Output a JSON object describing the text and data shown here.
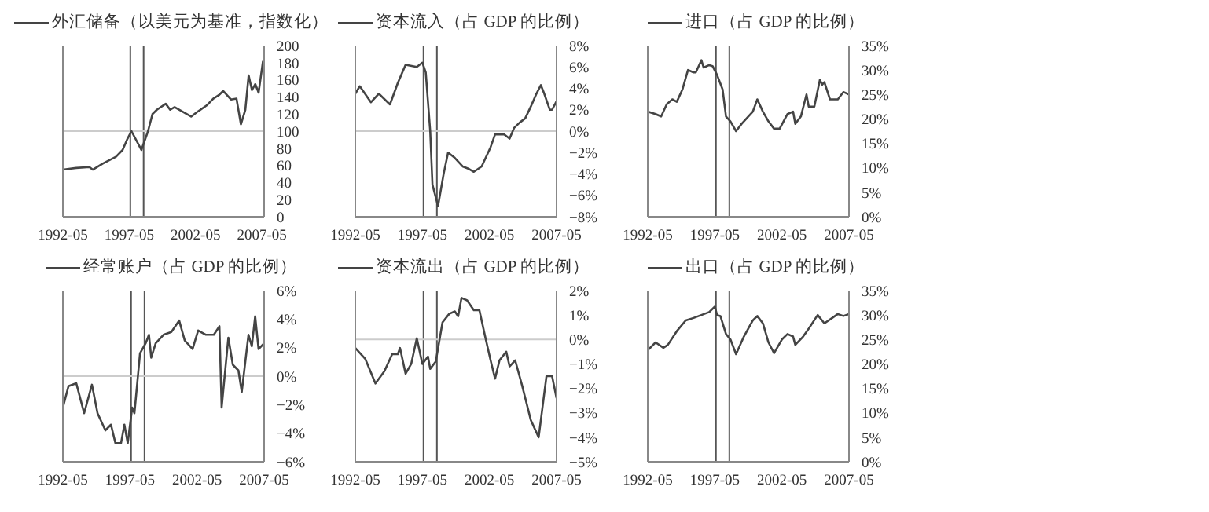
{
  "chart_data": [
    {
      "type": "line",
      "legend": "top",
      "marker": "none",
      "xlim": [
        "1992-05",
        "2007-07"
      ],
      "xticks": [
        "1992-05",
        "1997-05",
        "2002-05",
        "2007-05"
      ],
      "ylim": [
        0,
        200
      ],
      "yticks": [
        0,
        20,
        40,
        60,
        80,
        100,
        120,
        140,
        160,
        180,
        200
      ],
      "ref_lines": [
        {
          "axis": "x",
          "value": "1997-06",
          "color": "#555555"
        },
        {
          "axis": "x",
          "value": "1998-06",
          "color": "#555555"
        },
        {
          "axis": "y",
          "value": 100,
          "color": "#cccccc"
        }
      ],
      "x": [
        "1992-05",
        "1993-05",
        "1994-05",
        "1994-08",
        "1995-05",
        "1996-05",
        "1996-11",
        "1997-03",
        "1997-07",
        "1998-04",
        "1998-10",
        "1999-02",
        "1999-06",
        "2000-02",
        "2000-06",
        "2000-10",
        "2002-01",
        "2002-06",
        "2003-03",
        "2003-09",
        "2004-02",
        "2004-06",
        "2005-01",
        "2005-06",
        "2005-10",
        "2006-02",
        "2006-05",
        "2006-08",
        "2006-11",
        "2007-02",
        "2007-06"
      ],
      "series": [
        {
          "name": "外汇储备（以美元为基准，指数化）",
          "color": "#444444",
          "values": [
            55,
            57,
            58,
            55,
            62,
            70,
            78,
            90,
            100,
            78,
            100,
            120,
            125,
            132,
            125,
            128,
            117,
            122,
            130,
            138,
            142,
            147,
            137,
            138,
            108,
            125,
            165,
            148,
            155,
            145,
            182
          ]
        }
      ]
    },
    {
      "type": "line",
      "legend": "top",
      "marker": "none",
      "xlim": [
        "1992-05",
        "2007-05"
      ],
      "xticks": [
        "1992-05",
        "1997-05",
        "2002-05",
        "2007-05"
      ],
      "ylim": [
        -8,
        8
      ],
      "yticks": [
        {
          "value": -8,
          "label": "−8%"
        },
        {
          "value": -6,
          "label": "−6%"
        },
        {
          "value": -4,
          "label": "−4%"
        },
        {
          "value": -2,
          "label": "−2%"
        },
        {
          "value": 0,
          "label": "0%"
        },
        {
          "value": 2,
          "label": "2%"
        },
        {
          "value": 4,
          "label": "4%"
        },
        {
          "value": 6,
          "label": "6%"
        },
        {
          "value": 8,
          "label": "8%"
        }
      ],
      "ref_lines": [
        {
          "axis": "x",
          "value": "1997-06",
          "color": "#555555"
        },
        {
          "axis": "x",
          "value": "1998-06",
          "color": "#555555"
        },
        {
          "axis": "y",
          "value": 0,
          "color": "#cccccc"
        }
      ],
      "x": [
        "1992-05",
        "1992-09",
        "1993-07",
        "1994-02",
        "1994-12",
        "1995-07",
        "1996-02",
        "1996-12",
        "1997-05",
        "1997-08",
        "1997-12",
        "1998-02",
        "1998-07",
        "1998-12",
        "1999-04",
        "1999-10",
        "2000-05",
        "2000-10",
        "2001-03",
        "2001-10",
        "2002-06",
        "2002-10",
        "2003-06",
        "2003-11",
        "2004-03",
        "2004-08",
        "2005-01",
        "2005-06",
        "2005-11",
        "2006-03",
        "2006-06",
        "2006-11",
        "2007-01",
        "2007-05"
      ],
      "series": [
        {
          "name": "资本流入（占 GDP 的比例）",
          "color": "#444444",
          "values": [
            3.5,
            4.2,
            2.7,
            3.5,
            2.5,
            4.5,
            6.2,
            6.0,
            6.4,
            5.5,
            0,
            -5,
            -7,
            -4,
            -2,
            -2.5,
            -3.3,
            -3.5,
            -3.8,
            -3.3,
            -1.5,
            -0.3,
            -0.3,
            -0.7,
            0.3,
            0.8,
            1.2,
            2.3,
            3.5,
            4.3,
            3.5,
            2.0,
            2.0,
            2.8
          ]
        }
      ]
    },
    {
      "type": "line",
      "legend": "top",
      "marker": "none",
      "xlim": [
        "1992-05",
        "2007-05"
      ],
      "xticks": [
        "1992-05",
        "1997-05",
        "2002-05",
        "2007-05"
      ],
      "ylim": [
        0,
        35
      ],
      "yticks": [
        {
          "value": 0,
          "label": "0%"
        },
        {
          "value": 5,
          "label": "5%"
        },
        {
          "value": 10,
          "label": "10%"
        },
        {
          "value": 15,
          "label": "15%"
        },
        {
          "value": 20,
          "label": "20%"
        },
        {
          "value": 25,
          "label": "25%"
        },
        {
          "value": 30,
          "label": "30%"
        },
        {
          "value": 35,
          "label": "35%"
        }
      ],
      "ref_lines": [
        {
          "axis": "x",
          "value": "1997-06",
          "color": "#555555"
        },
        {
          "axis": "x",
          "value": "1998-06",
          "color": "#555555"
        }
      ],
      "x": [
        "1992-05",
        "1992-12",
        "1993-05",
        "1993-10",
        "1994-03",
        "1994-07",
        "1994-12",
        "1995-05",
        "1995-10",
        "1995-12",
        "1996-05",
        "1996-07",
        "1996-12",
        "1997-03",
        "1997-07",
        "1997-12",
        "1998-03",
        "1998-07",
        "1998-12",
        "1999-05",
        "2000-03",
        "2000-07",
        "2000-12",
        "2001-05",
        "2001-10",
        "2002-03",
        "2002-10",
        "2003-03",
        "2003-05",
        "2003-10",
        "2004-03",
        "2004-05",
        "2004-10",
        "2005-03",
        "2005-05",
        "2005-07",
        "2005-12",
        "2006-07",
        "2006-12",
        "2007-05"
      ],
      "series": [
        {
          "name": "进口（占 GDP 的比例）",
          "color": "#444444",
          "values": [
            21.5,
            21,
            20.5,
            23,
            24,
            23.5,
            26,
            30,
            29.5,
            29.5,
            32,
            30.5,
            31,
            30.8,
            29,
            26,
            20.5,
            19.5,
            17.5,
            19,
            21.5,
            24,
            21.5,
            19.5,
            18,
            18,
            21,
            21.5,
            19,
            20.5,
            25,
            22.5,
            22.5,
            28,
            27,
            27.5,
            24,
            24,
            25.5,
            25
          ]
        }
      ]
    },
    {
      "type": "line",
      "legend": "top",
      "marker": "none",
      "xlim": [
        "1992-05",
        "2007-05"
      ],
      "xticks": [
        "1992-05",
        "1997-05",
        "2002-05",
        "2007-05"
      ],
      "ylim": [
        -6,
        6
      ],
      "yticks": [
        {
          "value": -6,
          "label": "−6%"
        },
        {
          "value": -4,
          "label": "−4%"
        },
        {
          "value": -2,
          "label": "−2%"
        },
        {
          "value": 0,
          "label": "0%"
        },
        {
          "value": 2,
          "label": "2%"
        },
        {
          "value": 4,
          "label": "4%"
        },
        {
          "value": 6,
          "label": "6%"
        }
      ],
      "ref_lines": [
        {
          "axis": "x",
          "value": "1997-06",
          "color": "#555555"
        },
        {
          "axis": "x",
          "value": "1998-06",
          "color": "#555555"
        },
        {
          "axis": "y",
          "value": 0,
          "color": "#cccccc"
        }
      ],
      "x": [
        "1992-05",
        "1992-10",
        "1993-05",
        "1993-12",
        "1994-07",
        "1994-12",
        "1995-07",
        "1995-12",
        "1996-04",
        "1996-09",
        "1996-12",
        "1997-03",
        "1997-07",
        "1997-09",
        "1998-02",
        "1998-07",
        "1998-10",
        "1998-12",
        "1999-04",
        "1999-11",
        "2000-06",
        "2001-01",
        "2001-06",
        "2002-01",
        "2002-06",
        "2003-01",
        "2003-08",
        "2004-01",
        "2004-03",
        "2004-09",
        "2005-01",
        "2005-06",
        "2005-09",
        "2006-03",
        "2006-06",
        "2006-09",
        "2006-12",
        "2007-05"
      ],
      "series": [
        {
          "name": "经常账户（占 GDP 的比例）",
          "color": "#444444",
          "values": [
            -2.2,
            -0.7,
            -0.5,
            -2.6,
            -0.6,
            -2.6,
            -3.8,
            -3.4,
            -4.7,
            -4.7,
            -3.4,
            -4.7,
            -2.2,
            -2.6,
            1.6,
            2.3,
            2.9,
            1.3,
            2.3,
            2.9,
            3.1,
            3.9,
            2.5,
            1.9,
            3.2,
            2.9,
            2.9,
            3.5,
            -2.2,
            2.7,
            0.8,
            0.4,
            -1.1,
            2.9,
            2.1,
            4.2,
            1.9,
            2.3
          ]
        }
      ]
    },
    {
      "type": "line",
      "legend": "top",
      "marker": "none",
      "xlim": [
        "1992-05",
        "2007-05"
      ],
      "xticks": [
        "1992-05",
        "1997-05",
        "2002-05",
        "2007-05"
      ],
      "ylim": [
        -5,
        2
      ],
      "yticks": [
        {
          "value": -5,
          "label": "−5%"
        },
        {
          "value": -4,
          "label": "−4%"
        },
        {
          "value": -3,
          "label": "−3%"
        },
        {
          "value": -2,
          "label": "−2%"
        },
        {
          "value": -1,
          "label": "−1%"
        },
        {
          "value": 0,
          "label": "0%"
        },
        {
          "value": 1,
          "label": "1%"
        },
        {
          "value": 2,
          "label": "2%"
        }
      ],
      "ref_lines": [
        {
          "axis": "x",
          "value": "1997-06",
          "color": "#555555"
        },
        {
          "axis": "x",
          "value": "1998-06",
          "color": "#555555"
        },
        {
          "axis": "y",
          "value": 0,
          "color": "#cccccc"
        }
      ],
      "x": [
        "1992-05",
        "1993-02",
        "1993-11",
        "1994-07",
        "1995-02",
        "1995-07",
        "1995-09",
        "1996-02",
        "1996-07",
        "1996-12",
        "1997-05",
        "1997-10",
        "1997-12",
        "1998-05",
        "1998-11",
        "1999-05",
        "1999-10",
        "2000-01",
        "2000-04",
        "2000-09",
        "2001-03",
        "2001-08",
        "2002-01",
        "2002-06",
        "2002-10",
        "2003-02",
        "2003-08",
        "2003-11",
        "2004-04",
        "2004-10",
        "2005-06",
        "2006-01",
        "2006-08",
        "2007-01",
        "2007-05"
      ],
      "series": [
        {
          "name": "资本流出（占 GDP 的比例）",
          "color": "#444444",
          "values": [
            -0.35,
            -0.8,
            -1.8,
            -1.3,
            -0.6,
            -0.6,
            -0.35,
            -1.4,
            -1.0,
            0.05,
            -1.0,
            -0.7,
            -1.2,
            -0.9,
            0.7,
            1.05,
            1.15,
            0.95,
            1.7,
            1.6,
            1.2,
            1.2,
            0.15,
            -0.85,
            -1.6,
            -0.85,
            -0.5,
            -1.1,
            -0.85,
            -1.85,
            -3.3,
            -4.0,
            -1.5,
            -1.5,
            -2.4
          ]
        }
      ]
    },
    {
      "type": "line",
      "legend": "top",
      "marker": "none",
      "xlim": [
        "1992-05",
        "2007-05"
      ],
      "xticks": [
        "1992-05",
        "1997-05",
        "2002-05",
        "2007-05"
      ],
      "ylim": [
        0,
        35
      ],
      "yticks": [
        {
          "value": 0,
          "label": "0%"
        },
        {
          "value": 5,
          "label": "5%"
        },
        {
          "value": 10,
          "label": "10%"
        },
        {
          "value": 15,
          "label": "15%"
        },
        {
          "value": 20,
          "label": "20%"
        },
        {
          "value": 25,
          "label": "25%"
        },
        {
          "value": 30,
          "label": "30%"
        },
        {
          "value": 35,
          "label": "35%"
        }
      ],
      "ref_lines": [
        {
          "axis": "x",
          "value": "1997-06",
          "color": "#555555"
        },
        {
          "axis": "x",
          "value": "1998-06",
          "color": "#555555"
        }
      ],
      "x": [
        "1992-05",
        "1992-12",
        "1993-07",
        "1993-11",
        "1994-07",
        "1995-03",
        "1995-10",
        "1996-05",
        "1996-12",
        "1997-05",
        "1997-07",
        "1997-10",
        "1998-03",
        "1998-07",
        "1998-12",
        "1999-07",
        "2000-03",
        "2000-07",
        "2000-12",
        "2001-05",
        "2001-10",
        "2002-05",
        "2002-10",
        "2003-03",
        "2003-05",
        "2003-12",
        "2004-05",
        "2005-01",
        "2005-07",
        "2006-02",
        "2006-07",
        "2006-12",
        "2007-05"
      ],
      "series": [
        {
          "name": "出口（占 GDP 的比例）",
          "color": "#444444",
          "values": [
            22.8,
            24.4,
            23.3,
            23.9,
            26.7,
            28.9,
            29.4,
            30,
            30.6,
            31.7,
            30,
            29.8,
            26.1,
            25,
            22,
            25.6,
            28.9,
            29.8,
            28.3,
            24.4,
            22.2,
            25,
            26.1,
            25.6,
            23.9,
            25.6,
            27.2,
            30,
            28.3,
            29.4,
            30.2,
            29.8,
            30.2
          ]
        }
      ]
    }
  ]
}
